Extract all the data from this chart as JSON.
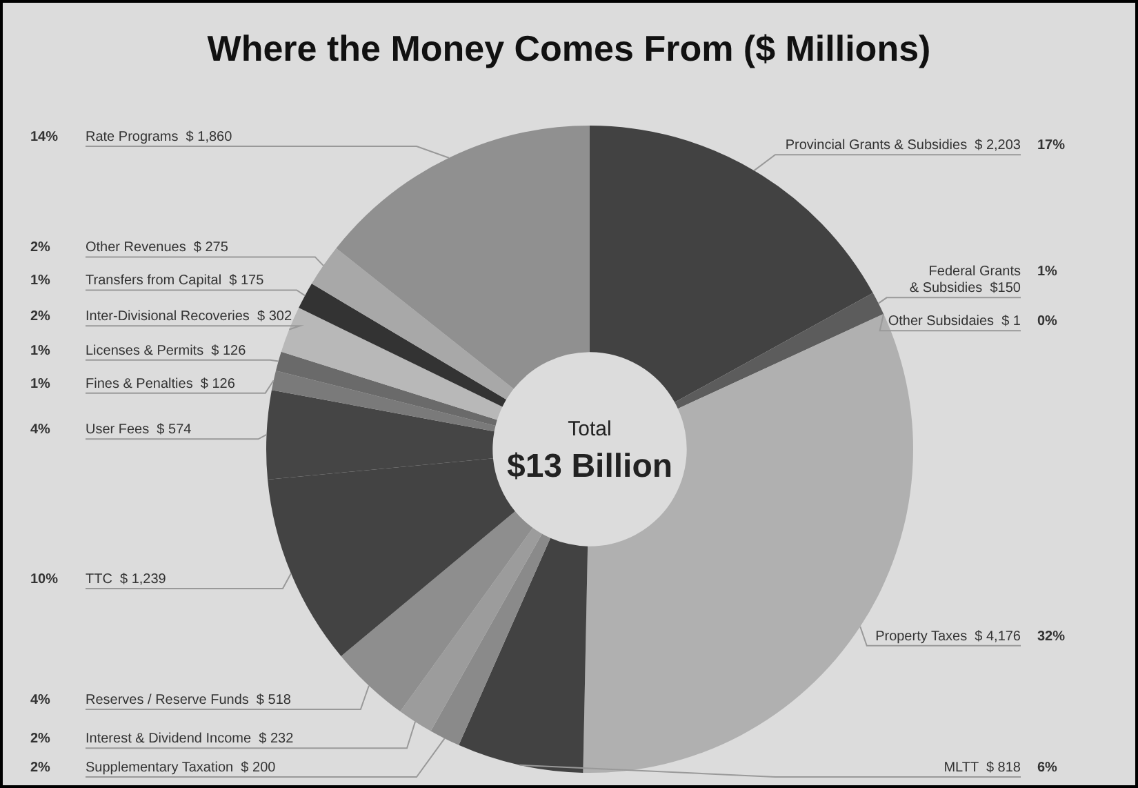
{
  "chart_data": {
    "type": "donut",
    "title": "Where the Money Comes From ($ Millions)",
    "categories": [
      "Provincial Grants & Subsidies",
      "Federal Grants & Subsidies",
      "Other Subsidaies",
      "Property Taxes",
      "MLTT",
      "Supplementary Taxation",
      "Interest & Dividend Income",
      "Reserves / Reserve Funds",
      "TTC",
      "User Fees",
      "Fines & Penalties",
      "Licenses & Permits",
      "Inter-Divisional Recoveries",
      "Transfers from Capital",
      "Other Revenues",
      "Rate Programs"
    ],
    "values": [
      2203,
      150,
      1,
      4176,
      818,
      200,
      232,
      518,
      1239,
      574,
      126,
      126,
      302,
      175,
      275,
      1860
    ],
    "value_labels": [
      "$ 2,203",
      "$150",
      "$ 1",
      "$ 4,176",
      "$ 818",
      "$ 200",
      "$ 232",
      "$ 518",
      "$ 1,239",
      "$ 574",
      "$ 126",
      "$ 126",
      "$ 302",
      "$ 175",
      "$ 275",
      "$ 1,860"
    ],
    "colors": [
      "#424242",
      "#5c5c5c",
      "#505050",
      "#b0b0b0",
      "#424242",
      "#8a8a8a",
      "#9c9c9c",
      "#8e8e8e",
      "#434343",
      "#454545",
      "#7a7a7a",
      "#6a6a6a",
      "#b8b8b8",
      "#333333",
      "#a8a8a8",
      "#909090"
    ],
    "annotations": [
      "17%",
      "1%",
      "0%",
      "32%",
      "6%",
      "2%",
      "2%",
      "4%",
      "10%",
      "4%",
      "1%",
      "1%",
      "2%",
      "1%",
      "2%",
      "14%",
      "Total",
      "$13 Billion"
    ],
    "legend": false
  }
}
